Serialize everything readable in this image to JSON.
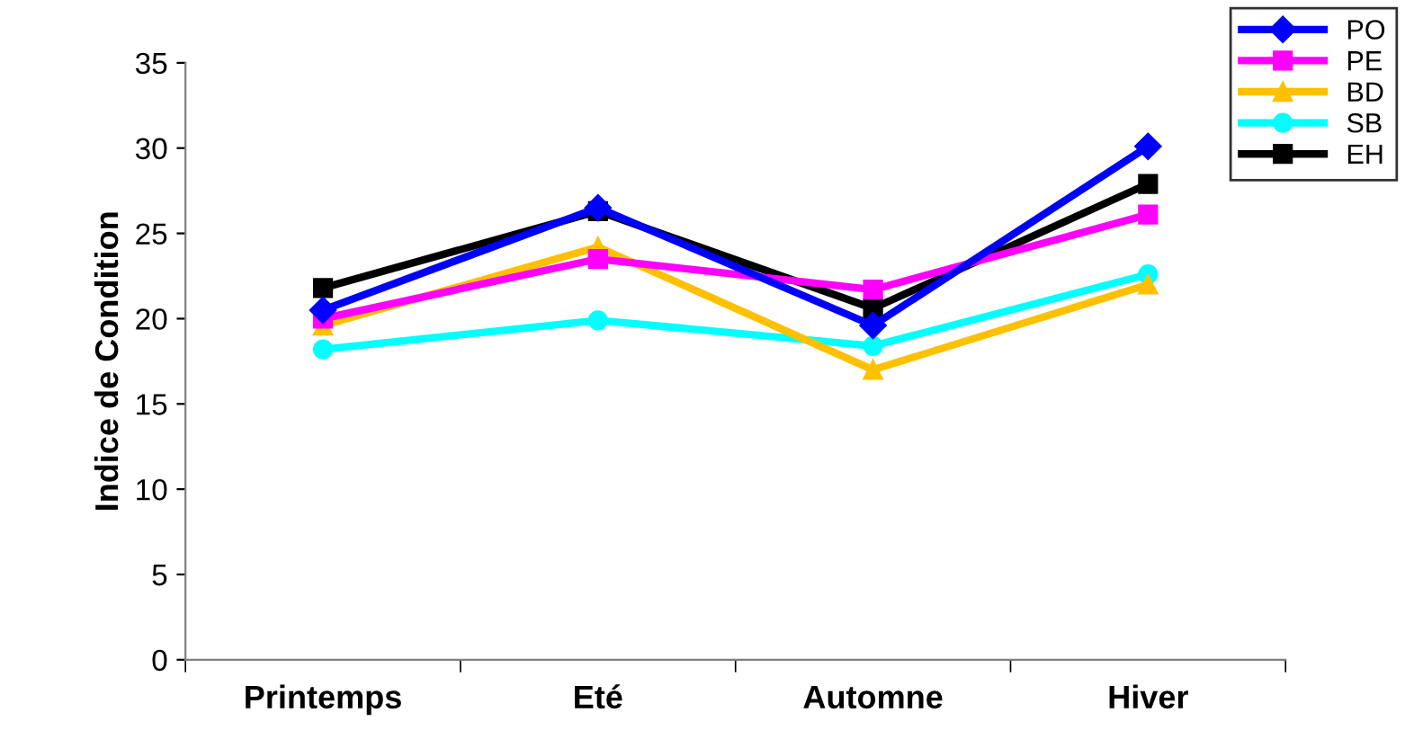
{
  "chart_data": {
    "type": "line",
    "ylabel": "Indice de Condition",
    "categories": [
      "Printemps",
      "Eté",
      "Automne",
      "Hiver"
    ],
    "ylim": [
      0,
      35
    ],
    "yticks": [
      0,
      5,
      10,
      15,
      20,
      25,
      30,
      35
    ],
    "grid": false,
    "legend": "top right",
    "series": [
      {
        "name": "PO",
        "color": "#0000ff",
        "marker": "diamond",
        "values": [
          20.5,
          26.5,
          19.6,
          30.1
        ]
      },
      {
        "name": "PE",
        "color": "#ff00ff",
        "marker": "square",
        "values": [
          20.0,
          23.5,
          21.7,
          26.1
        ]
      },
      {
        "name": "BD",
        "color": "#ffc000",
        "marker": "triangle",
        "values": [
          19.6,
          24.2,
          17.0,
          22.0
        ]
      },
      {
        "name": "SB",
        "color": "#00ffff",
        "marker": "circle",
        "values": [
          18.2,
          19.9,
          18.4,
          22.6
        ]
      },
      {
        "name": "EH",
        "color": "#000000",
        "marker": "square",
        "values": [
          21.8,
          26.3,
          20.6,
          27.9
        ]
      }
    ]
  }
}
